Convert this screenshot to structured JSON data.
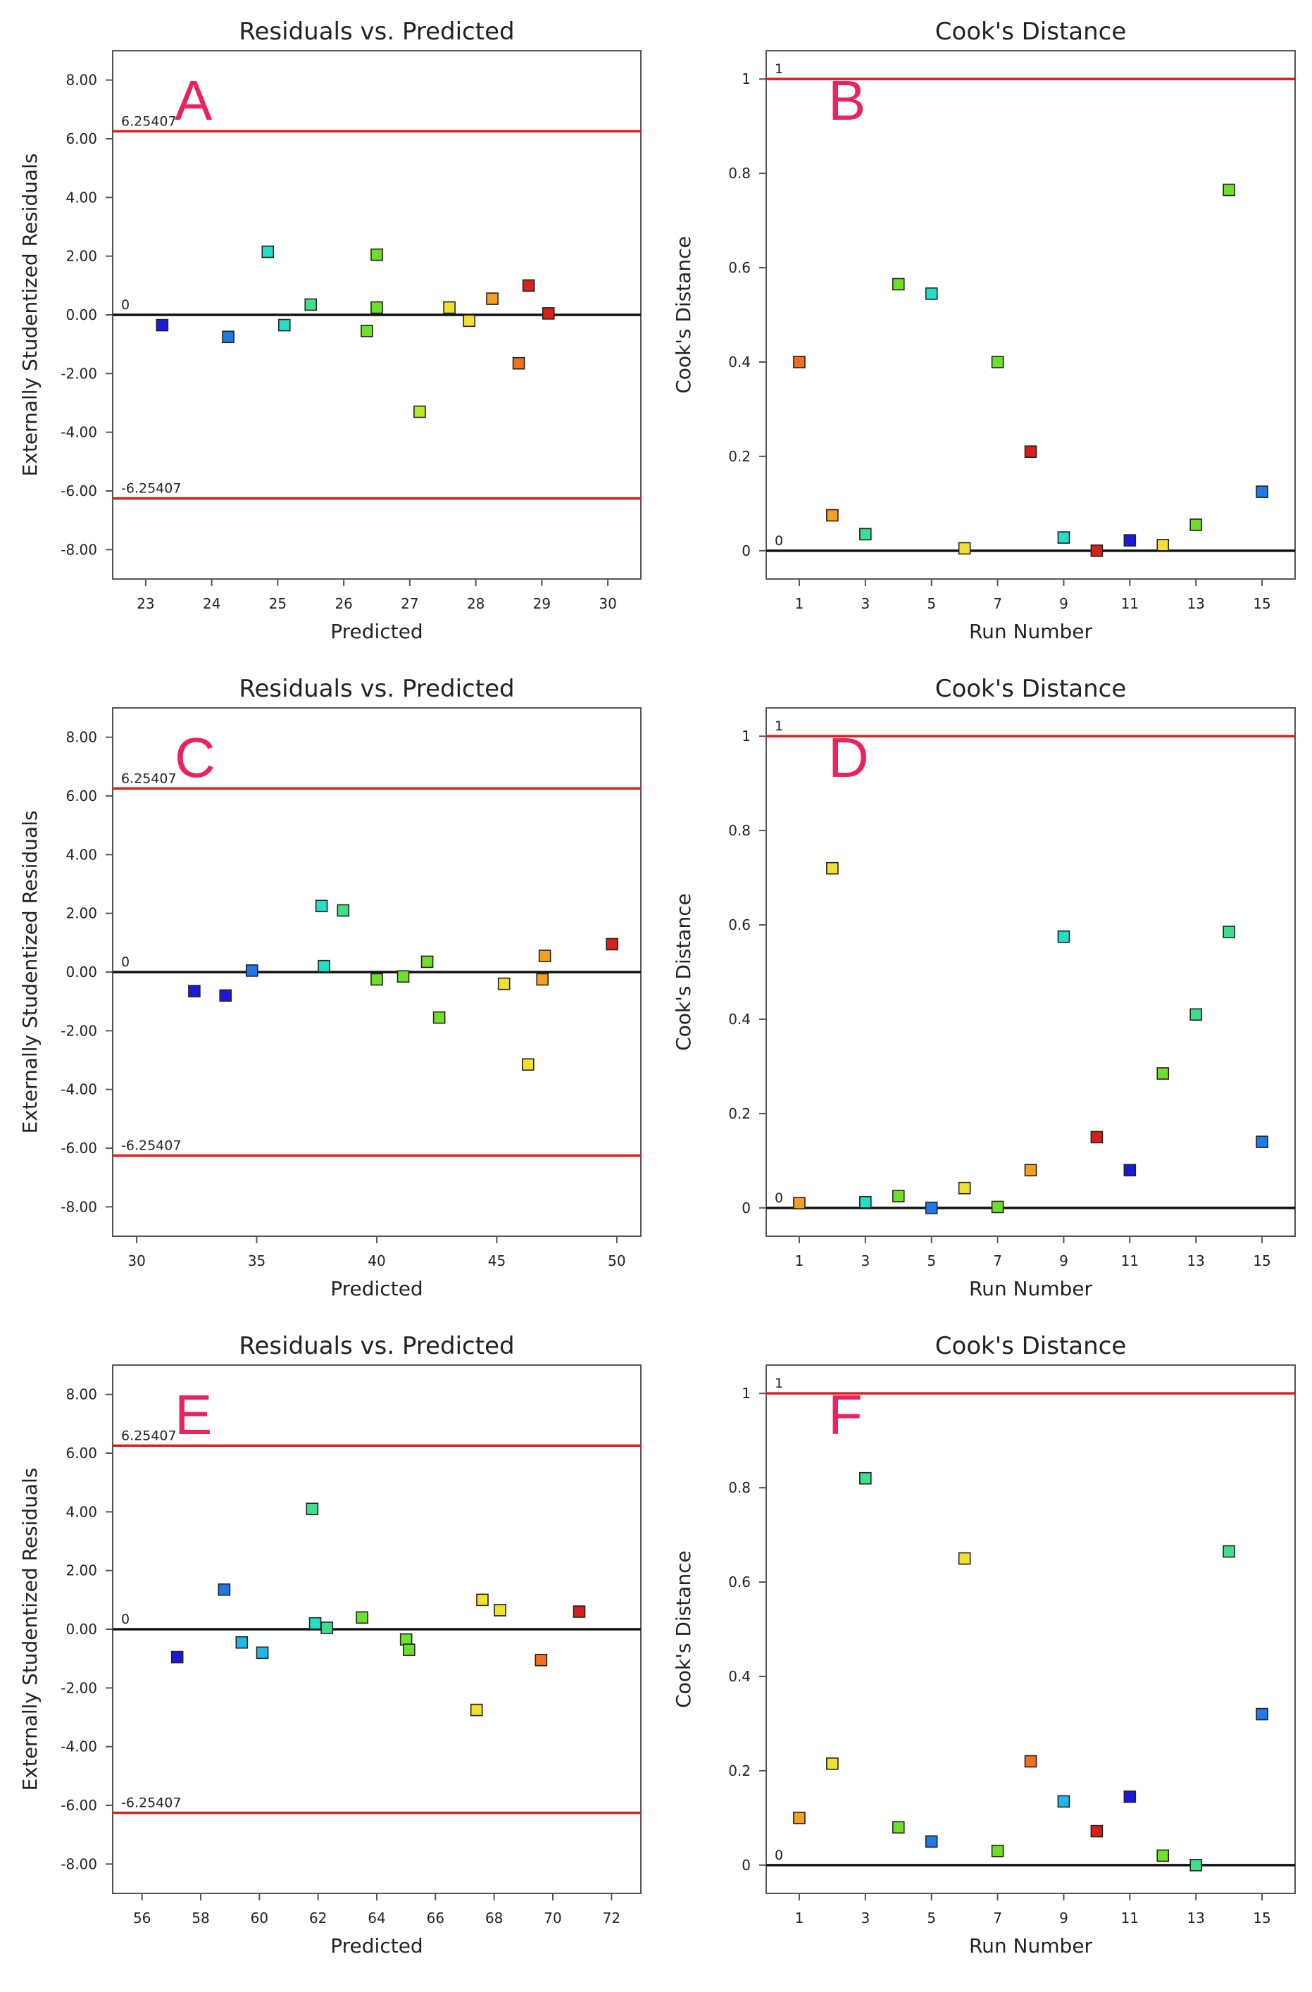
{
  "colors": {
    "limit_line": "#d42020",
    "zero_line": "#111111",
    "panel_letter": "#e8245e",
    "point_palette": [
      "#1a1adb",
      "#1e78e6",
      "#20b8e8",
      "#22e0c8",
      "#3de08a",
      "#6fe02a",
      "#b8e82a",
      "#f0e030",
      "#f5a020",
      "#f07020",
      "#d8201a"
    ]
  },
  "chart_data": [
    {
      "id": "A",
      "letter": "A",
      "type": "scatter",
      "title": "Residuals vs. Predicted",
      "xlabel": "Predicted",
      "ylabel": "Externally Studentized Residuals",
      "xlim": [
        22.5,
        30.5
      ],
      "ylim": [
        -9,
        9
      ],
      "xticks": [
        23,
        24,
        25,
        26,
        27,
        28,
        29,
        30
      ],
      "xtick_labels": [
        "23",
        "24",
        "25",
        "26",
        "27",
        "28",
        "29",
        "30"
      ],
      "yticks": [
        -8,
        -6,
        -4,
        -2,
        0,
        2,
        4,
        6,
        8
      ],
      "ytick_labels": [
        "-8.00",
        "-6.00",
        "-4.00",
        "-2.00",
        "0.00",
        "2.00",
        "4.00",
        "6.00",
        "8.00"
      ],
      "ref_lines": [
        {
          "y": 6.25407,
          "label": "6.25407",
          "color": "#d42020"
        },
        {
          "y": 0,
          "label": "0",
          "color": "#111111"
        },
        {
          "y": -6.25407,
          "label": "-6.25407",
          "color": "#d42020"
        }
      ],
      "points": [
        {
          "x": 23.25,
          "y": -0.35,
          "c": 0
        },
        {
          "x": 24.25,
          "y": -0.75,
          "c": 1
        },
        {
          "x": 24.85,
          "y": 2.15,
          "c": 3
        },
        {
          "x": 25.1,
          "y": -0.35,
          "c": 3
        },
        {
          "x": 25.5,
          "y": 0.35,
          "c": 4
        },
        {
          "x": 26.35,
          "y": -0.55,
          "c": 5
        },
        {
          "x": 26.5,
          "y": 0.25,
          "c": 5
        },
        {
          "x": 26.5,
          "y": 2.05,
          "c": 5
        },
        {
          "x": 27.15,
          "y": -3.3,
          "c": 6
        },
        {
          "x": 27.6,
          "y": 0.25,
          "c": 7
        },
        {
          "x": 27.9,
          "y": -0.2,
          "c": 7
        },
        {
          "x": 28.25,
          "y": 0.55,
          "c": 8
        },
        {
          "x": 28.65,
          "y": -1.65,
          "c": 9
        },
        {
          "x": 28.8,
          "y": 1.0,
          "c": 10
        },
        {
          "x": 29.1,
          "y": 0.05,
          "c": 10
        }
      ]
    },
    {
      "id": "B",
      "letter": "B",
      "type": "scatter",
      "title": "Cook's Distance",
      "xlabel": "Run Number",
      "ylabel": "Cook's Distance",
      "xlim": [
        0,
        16
      ],
      "ylim": [
        -0.06,
        1.06
      ],
      "xticks": [
        1,
        3,
        5,
        7,
        9,
        11,
        13,
        15
      ],
      "xtick_labels": [
        "1",
        "3",
        "5",
        "7",
        "9",
        "11",
        "13",
        "15"
      ],
      "yticks": [
        0,
        0.2,
        0.4,
        0.6,
        0.8,
        1
      ],
      "ytick_labels": [
        "0",
        "0.2",
        "0.4",
        "0.6",
        "0.8",
        "1"
      ],
      "ref_lines": [
        {
          "y": 1,
          "label": "1",
          "color": "#d42020"
        },
        {
          "y": 0,
          "label": "0",
          "color": "#111111"
        }
      ],
      "points": [
        {
          "x": 1,
          "y": 0.4,
          "c": 9
        },
        {
          "x": 2,
          "y": 0.075,
          "c": 8
        },
        {
          "x": 3,
          "y": 0.035,
          "c": 4
        },
        {
          "x": 4,
          "y": 0.565,
          "c": 5
        },
        {
          "x": 5,
          "y": 0.545,
          "c": 3
        },
        {
          "x": 6,
          "y": 0.005,
          "c": 7
        },
        {
          "x": 7,
          "y": 0.4,
          "c": 5
        },
        {
          "x": 8,
          "y": 0.21,
          "c": 10
        },
        {
          "x": 9,
          "y": 0.028,
          "c": 3
        },
        {
          "x": 10,
          "y": 0.0,
          "c": 10
        },
        {
          "x": 11,
          "y": 0.022,
          "c": 0
        },
        {
          "x": 12,
          "y": 0.012,
          "c": 7
        },
        {
          "x": 13,
          "y": 0.055,
          "c": 5
        },
        {
          "x": 14,
          "y": 0.765,
          "c": 5
        },
        {
          "x": 15,
          "y": 0.125,
          "c": 1
        }
      ]
    },
    {
      "id": "C",
      "letter": "C",
      "type": "scatter",
      "title": "Residuals vs. Predicted",
      "xlabel": "Predicted",
      "ylabel": "Externally Studentized Residuals",
      "xlim": [
        29,
        51
      ],
      "ylim": [
        -9,
        9
      ],
      "xticks": [
        30,
        35,
        40,
        45,
        50
      ],
      "xtick_labels": [
        "30",
        "35",
        "40",
        "45",
        "50"
      ],
      "yticks": [
        -8,
        -6,
        -4,
        -2,
        0,
        2,
        4,
        6,
        8
      ],
      "ytick_labels": [
        "-8.00",
        "-6.00",
        "-4.00",
        "-2.00",
        "0.00",
        "2.00",
        "4.00",
        "6.00",
        "8.00"
      ],
      "ref_lines": [
        {
          "y": 6.25407,
          "label": "6.25407",
          "color": "#d42020"
        },
        {
          "y": 0,
          "label": "0",
          "color": "#111111"
        },
        {
          "y": -6.25407,
          "label": "-6.25407",
          "color": "#d42020"
        }
      ],
      "points": [
        {
          "x": 32.4,
          "y": -0.65,
          "c": 0
        },
        {
          "x": 33.7,
          "y": -0.8,
          "c": 0
        },
        {
          "x": 34.8,
          "y": 0.05,
          "c": 1
        },
        {
          "x": 37.7,
          "y": 2.25,
          "c": 3
        },
        {
          "x": 37.8,
          "y": 0.2,
          "c": 3
        },
        {
          "x": 38.6,
          "y": 2.1,
          "c": 4
        },
        {
          "x": 40.0,
          "y": -0.25,
          "c": 5
        },
        {
          "x": 41.1,
          "y": -0.15,
          "c": 5
        },
        {
          "x": 42.1,
          "y": 0.35,
          "c": 5
        },
        {
          "x": 42.6,
          "y": -1.55,
          "c": 5
        },
        {
          "x": 45.3,
          "y": -0.4,
          "c": 7
        },
        {
          "x": 46.3,
          "y": -3.15,
          "c": 7
        },
        {
          "x": 46.9,
          "y": -0.25,
          "c": 8
        },
        {
          "x": 47.0,
          "y": 0.55,
          "c": 8
        },
        {
          "x": 49.8,
          "y": 0.95,
          "c": 10
        }
      ]
    },
    {
      "id": "D",
      "letter": "D",
      "type": "scatter",
      "title": "Cook's Distance",
      "xlabel": "Run Number",
      "ylabel": "Cook's Distance",
      "xlim": [
        0,
        16
      ],
      "ylim": [
        -0.06,
        1.06
      ],
      "xticks": [
        1,
        3,
        5,
        7,
        9,
        11,
        13,
        15
      ],
      "xtick_labels": [
        "1",
        "3",
        "5",
        "7",
        "9",
        "11",
        "13",
        "15"
      ],
      "yticks": [
        0,
        0.2,
        0.4,
        0.6,
        0.8,
        1
      ],
      "ytick_labels": [
        "0",
        "0.2",
        "0.4",
        "0.6",
        "0.8",
        "1"
      ],
      "ref_lines": [
        {
          "y": 1,
          "label": "1",
          "color": "#d42020"
        },
        {
          "y": 0,
          "label": "0",
          "color": "#111111"
        }
      ],
      "points": [
        {
          "x": 1,
          "y": 0.01,
          "c": 8
        },
        {
          "x": 2,
          "y": 0.72,
          "c": 7
        },
        {
          "x": 3,
          "y": 0.012,
          "c": 3
        },
        {
          "x": 4,
          "y": 0.025,
          "c": 5
        },
        {
          "x": 5,
          "y": 0.0,
          "c": 1
        },
        {
          "x": 6,
          "y": 0.042,
          "c": 7
        },
        {
          "x": 7,
          "y": 0.002,
          "c": 5
        },
        {
          "x": 8,
          "y": 0.08,
          "c": 8
        },
        {
          "x": 9,
          "y": 0.575,
          "c": 3
        },
        {
          "x": 10,
          "y": 0.15,
          "c": 10
        },
        {
          "x": 11,
          "y": 0.08,
          "c": 0
        },
        {
          "x": 12,
          "y": 0.285,
          "c": 5
        },
        {
          "x": 13,
          "y": 0.41,
          "c": 4
        },
        {
          "x": 14,
          "y": 0.585,
          "c": 4
        },
        {
          "x": 15,
          "y": 0.14,
          "c": 1
        }
      ]
    },
    {
      "id": "E",
      "letter": "E",
      "type": "scatter",
      "title": "Residuals vs. Predicted",
      "xlabel": "Predicted",
      "ylabel": "Externally Studentized Residuals",
      "xlim": [
        55,
        73
      ],
      "ylim": [
        -9,
        9
      ],
      "xticks": [
        56,
        58,
        60,
        62,
        64,
        66,
        68,
        70,
        72
      ],
      "xtick_labels": [
        "56",
        "58",
        "60",
        "62",
        "64",
        "66",
        "68",
        "70",
        "72"
      ],
      "yticks": [
        -8,
        -6,
        -4,
        -2,
        0,
        2,
        4,
        6,
        8
      ],
      "ytick_labels": [
        "-8.00",
        "-6.00",
        "-4.00",
        "-2.00",
        "0.00",
        "2.00",
        "4.00",
        "6.00",
        "8.00"
      ],
      "ref_lines": [
        {
          "y": 6.25407,
          "label": "6.25407",
          "color": "#d42020"
        },
        {
          "y": 0,
          "label": "0",
          "color": "#111111"
        },
        {
          "y": -6.25407,
          "label": "-6.25407",
          "color": "#d42020"
        }
      ],
      "points": [
        {
          "x": 57.2,
          "y": -0.95,
          "c": 0
        },
        {
          "x": 58.8,
          "y": 1.35,
          "c": 1
        },
        {
          "x": 59.4,
          "y": -0.45,
          "c": 2
        },
        {
          "x": 60.1,
          "y": -0.8,
          "c": 2
        },
        {
          "x": 61.8,
          "y": 4.1,
          "c": 4
        },
        {
          "x": 61.9,
          "y": 0.2,
          "c": 3
        },
        {
          "x": 62.3,
          "y": 0.05,
          "c": 4
        },
        {
          "x": 63.5,
          "y": 0.4,
          "c": 5
        },
        {
          "x": 65.0,
          "y": -0.35,
          "c": 5
        },
        {
          "x": 65.1,
          "y": -0.7,
          "c": 5
        },
        {
          "x": 67.4,
          "y": -2.75,
          "c": 7
        },
        {
          "x": 67.6,
          "y": 1.0,
          "c": 7
        },
        {
          "x": 68.2,
          "y": 0.65,
          "c": 7
        },
        {
          "x": 69.6,
          "y": -1.05,
          "c": 9
        },
        {
          "x": 70.9,
          "y": 0.6,
          "c": 10
        }
      ]
    },
    {
      "id": "F",
      "letter": "F",
      "type": "scatter",
      "title": "Cook's Distance",
      "xlabel": "Run Number",
      "ylabel": "Cook's Distance",
      "xlim": [
        0,
        16
      ],
      "ylim": [
        -0.06,
        1.06
      ],
      "xticks": [
        1,
        3,
        5,
        7,
        9,
        11,
        13,
        15
      ],
      "xtick_labels": [
        "1",
        "3",
        "5",
        "7",
        "9",
        "11",
        "13",
        "15"
      ],
      "yticks": [
        0,
        0.2,
        0.4,
        0.6,
        0.8,
        1
      ],
      "ytick_labels": [
        "0",
        "0.2",
        "0.4",
        "0.6",
        "0.8",
        "1"
      ],
      "ref_lines": [
        {
          "y": 1,
          "label": "1",
          "color": "#d42020"
        },
        {
          "y": 0,
          "label": "0",
          "color": "#111111"
        }
      ],
      "points": [
        {
          "x": 1,
          "y": 0.1,
          "c": 8
        },
        {
          "x": 2,
          "y": 0.215,
          "c": 7
        },
        {
          "x": 3,
          "y": 0.82,
          "c": 4
        },
        {
          "x": 4,
          "y": 0.08,
          "c": 5
        },
        {
          "x": 5,
          "y": 0.05,
          "c": 1
        },
        {
          "x": 6,
          "y": 0.65,
          "c": 7
        },
        {
          "x": 7,
          "y": 0.03,
          "c": 5
        },
        {
          "x": 8,
          "y": 0.22,
          "c": 9
        },
        {
          "x": 9,
          "y": 0.135,
          "c": 2
        },
        {
          "x": 10,
          "y": 0.072,
          "c": 10
        },
        {
          "x": 11,
          "y": 0.145,
          "c": 0
        },
        {
          "x": 12,
          "y": 0.02,
          "c": 5
        },
        {
          "x": 13,
          "y": 0.0,
          "c": 4
        },
        {
          "x": 14,
          "y": 0.665,
          "c": 4
        },
        {
          "x": 15,
          "y": 0.32,
          "c": 1
        }
      ]
    }
  ]
}
